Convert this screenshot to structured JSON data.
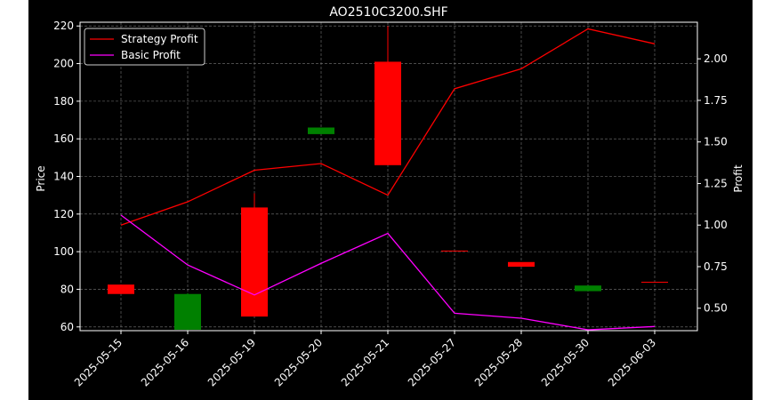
{
  "chart_data": {
    "type": "candlestick",
    "title": "AO2510C3200.SHF",
    "xlabel": "",
    "ylabel_left": "Price",
    "ylabel_right": "Profit",
    "categories": [
      "2025-05-15",
      "2025-05-16",
      "2025-05-19",
      "2025-05-20",
      "2025-05-21",
      "2025-05-27",
      "2025-05-28",
      "2025-05-30",
      "2025-06-03"
    ],
    "y_left": {
      "ticks": [
        60,
        80,
        100,
        120,
        140,
        160,
        180,
        200,
        220
      ],
      "range": [
        58,
        222
      ]
    },
    "y_right": {
      "ticks": [
        "0.50",
        "0.75",
        "1.00",
        "1.25",
        "1.50",
        "1.75",
        "2.00"
      ],
      "range": [
        0.365,
        2.22
      ]
    },
    "grid": true,
    "legend_position": "top-left",
    "candles": [
      {
        "date": "2025-05-15",
        "open": 77.5,
        "close": 82.5,
        "high": 82.5,
        "low": 77.5,
        "color": "#ff0000"
      },
      {
        "date": "2025-05-16",
        "open": 77.5,
        "close": 58.5,
        "high": 78,
        "low": 58,
        "color": "#008000"
      },
      {
        "date": "2025-05-19",
        "open": 65.5,
        "close": 123.5,
        "high": 131,
        "low": 65.5,
        "color": "#ff0000"
      },
      {
        "date": "2025-05-20",
        "open": 166,
        "close": 162.5,
        "high": 166,
        "low": 162.5,
        "color": "#008000"
      },
      {
        "date": "2025-05-21",
        "open": 146,
        "close": 201,
        "high": 220,
        "low": 146,
        "color": "#ff0000"
      },
      {
        "date": "2025-05-27",
        "open": 100.6,
        "close": 100.6,
        "high": 100.6,
        "low": 100.6,
        "color": "#ff0000"
      },
      {
        "date": "2025-05-28",
        "open": 92,
        "close": 94.5,
        "high": 94.5,
        "low": 92,
        "color": "#ff0000"
      },
      {
        "date": "2025-05-30",
        "open": 82,
        "close": 79,
        "high": 82,
        "low": 79,
        "color": "#008000"
      },
      {
        "date": "2025-06-03",
        "open": 84,
        "close": 84,
        "high": 84,
        "low": 84,
        "color": "#ff0000"
      }
    ],
    "series": [
      {
        "name": "Strategy Profit",
        "axis": "right",
        "color": "#ff0000",
        "values": [
          1.0,
          1.14,
          1.33,
          1.37,
          1.18,
          1.82,
          1.94,
          2.18,
          2.09
        ]
      },
      {
        "name": "Basic Profit",
        "axis": "right",
        "color": "#ff00ff",
        "values": [
          1.06,
          0.76,
          0.58,
          0.77,
          0.95,
          0.47,
          0.44,
          0.37,
          0.39
        ]
      }
    ]
  }
}
